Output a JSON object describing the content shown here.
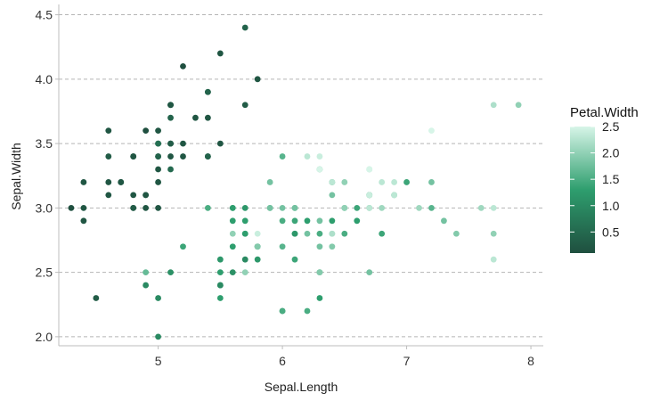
{
  "chart_data": {
    "type": "scatter",
    "xlabel": "Sepal.Length",
    "ylabel": "Sepal.Width",
    "xlim": [
      4.2,
      8.1
    ],
    "ylim": [
      1.93,
      4.58
    ],
    "xticks": [
      5,
      6,
      7,
      8
    ],
    "yticks": [
      2.0,
      2.5,
      3.0,
      3.5,
      4.0,
      4.5
    ],
    "grid": "horizontal-dashed",
    "legend": {
      "title": "Petal.Width",
      "position": "right",
      "range": [
        0.1,
        2.5
      ],
      "ticks": [
        0.5,
        1.0,
        1.5,
        2.0,
        2.5
      ],
      "color_low": "#1f4f3f",
      "color_mid": "#2e9e6e",
      "color_high": "#d7f5e8"
    },
    "points": [
      {
        "x": 5.1,
        "y": 3.5,
        "c": 0.2
      },
      {
        "x": 4.9,
        "y": 3.0,
        "c": 0.2
      },
      {
        "x": 4.7,
        "y": 3.2,
        "c": 0.2
      },
      {
        "x": 4.6,
        "y": 3.1,
        "c": 0.2
      },
      {
        "x": 5.0,
        "y": 3.6,
        "c": 0.2
      },
      {
        "x": 5.4,
        "y": 3.9,
        "c": 0.4
      },
      {
        "x": 4.6,
        "y": 3.4,
        "c": 0.3
      },
      {
        "x": 5.0,
        "y": 3.4,
        "c": 0.2
      },
      {
        "x": 4.4,
        "y": 2.9,
        "c": 0.2
      },
      {
        "x": 4.9,
        "y": 3.1,
        "c": 0.1
      },
      {
        "x": 5.4,
        "y": 3.7,
        "c": 0.2
      },
      {
        "x": 4.8,
        "y": 3.4,
        "c": 0.2
      },
      {
        "x": 4.8,
        "y": 3.0,
        "c": 0.1
      },
      {
        "x": 4.3,
        "y": 3.0,
        "c": 0.1
      },
      {
        "x": 5.8,
        "y": 4.0,
        "c": 0.2
      },
      {
        "x": 5.7,
        "y": 4.4,
        "c": 0.4
      },
      {
        "x": 5.4,
        "y": 3.9,
        "c": 0.4
      },
      {
        "x": 5.1,
        "y": 3.5,
        "c": 0.3
      },
      {
        "x": 5.7,
        "y": 3.8,
        "c": 0.3
      },
      {
        "x": 5.1,
        "y": 3.8,
        "c": 0.3
      },
      {
        "x": 5.4,
        "y": 3.4,
        "c": 0.2
      },
      {
        "x": 5.1,
        "y": 3.7,
        "c": 0.4
      },
      {
        "x": 4.6,
        "y": 3.6,
        "c": 0.2
      },
      {
        "x": 5.1,
        "y": 3.3,
        "c": 0.5
      },
      {
        "x": 4.8,
        "y": 3.4,
        "c": 0.2
      },
      {
        "x": 5.0,
        "y": 3.0,
        "c": 0.2
      },
      {
        "x": 5.0,
        "y": 3.4,
        "c": 0.4
      },
      {
        "x": 5.2,
        "y": 3.5,
        "c": 0.2
      },
      {
        "x": 5.2,
        "y": 3.4,
        "c": 0.2
      },
      {
        "x": 4.7,
        "y": 3.2,
        "c": 0.2
      },
      {
        "x": 4.8,
        "y": 3.1,
        "c": 0.2
      },
      {
        "x": 5.4,
        "y": 3.4,
        "c": 0.4
      },
      {
        "x": 5.2,
        "y": 4.1,
        "c": 0.1
      },
      {
        "x": 5.5,
        "y": 4.2,
        "c": 0.2
      },
      {
        "x": 4.9,
        "y": 3.1,
        "c": 0.2
      },
      {
        "x": 5.0,
        "y": 3.2,
        "c": 0.2
      },
      {
        "x": 5.5,
        "y": 3.5,
        "c": 0.2
      },
      {
        "x": 4.9,
        "y": 3.6,
        "c": 0.1
      },
      {
        "x": 4.4,
        "y": 3.0,
        "c": 0.2
      },
      {
        "x": 5.1,
        "y": 3.4,
        "c": 0.2
      },
      {
        "x": 5.0,
        "y": 3.5,
        "c": 0.3
      },
      {
        "x": 4.5,
        "y": 2.3,
        "c": 0.3
      },
      {
        "x": 4.4,
        "y": 3.2,
        "c": 0.2
      },
      {
        "x": 5.0,
        "y": 3.5,
        "c": 0.6
      },
      {
        "x": 5.1,
        "y": 3.8,
        "c": 0.4
      },
      {
        "x": 4.8,
        "y": 3.0,
        "c": 0.3
      },
      {
        "x": 5.1,
        "y": 3.8,
        "c": 0.2
      },
      {
        "x": 4.6,
        "y": 3.2,
        "c": 0.2
      },
      {
        "x": 5.3,
        "y": 3.7,
        "c": 0.2
      },
      {
        "x": 5.0,
        "y": 3.3,
        "c": 0.2
      },
      {
        "x": 7.0,
        "y": 3.2,
        "c": 1.4
      },
      {
        "x": 6.4,
        "y": 3.2,
        "c": 1.5
      },
      {
        "x": 6.9,
        "y": 3.1,
        "c": 1.5
      },
      {
        "x": 5.5,
        "y": 2.3,
        "c": 1.3
      },
      {
        "x": 6.5,
        "y": 2.8,
        "c": 1.5
      },
      {
        "x": 5.7,
        "y": 2.8,
        "c": 1.3
      },
      {
        "x": 6.3,
        "y": 3.3,
        "c": 1.6
      },
      {
        "x": 4.9,
        "y": 2.4,
        "c": 1.0
      },
      {
        "x": 6.6,
        "y": 2.9,
        "c": 1.3
      },
      {
        "x": 5.2,
        "y": 2.7,
        "c": 1.4
      },
      {
        "x": 5.0,
        "y": 2.0,
        "c": 1.0
      },
      {
        "x": 5.9,
        "y": 3.0,
        "c": 1.5
      },
      {
        "x": 6.0,
        "y": 2.2,
        "c": 1.0
      },
      {
        "x": 6.1,
        "y": 2.9,
        "c": 1.4
      },
      {
        "x": 5.6,
        "y": 2.9,
        "c": 1.3
      },
      {
        "x": 6.7,
        "y": 3.1,
        "c": 1.4
      },
      {
        "x": 5.6,
        "y": 3.0,
        "c": 1.5
      },
      {
        "x": 5.8,
        "y": 2.7,
        "c": 1.0
      },
      {
        "x": 6.2,
        "y": 2.2,
        "c": 1.5
      },
      {
        "x": 5.6,
        "y": 2.5,
        "c": 1.1
      },
      {
        "x": 5.9,
        "y": 3.2,
        "c": 1.8
      },
      {
        "x": 6.1,
        "y": 2.8,
        "c": 1.3
      },
      {
        "x": 6.3,
        "y": 2.5,
        "c": 1.5
      },
      {
        "x": 6.1,
        "y": 2.8,
        "c": 1.2
      },
      {
        "x": 6.4,
        "y": 2.9,
        "c": 1.3
      },
      {
        "x": 6.6,
        "y": 3.0,
        "c": 1.4
      },
      {
        "x": 6.8,
        "y": 2.8,
        "c": 1.4
      },
      {
        "x": 6.7,
        "y": 3.0,
        "c": 1.7
      },
      {
        "x": 6.0,
        "y": 2.9,
        "c": 1.5
      },
      {
        "x": 5.7,
        "y": 2.6,
        "c": 1.0
      },
      {
        "x": 5.5,
        "y": 2.4,
        "c": 1.1
      },
      {
        "x": 5.5,
        "y": 2.4,
        "c": 1.0
      },
      {
        "x": 5.8,
        "y": 2.7,
        "c": 1.2
      },
      {
        "x": 6.0,
        "y": 2.7,
        "c": 1.6
      },
      {
        "x": 5.4,
        "y": 3.0,
        "c": 1.5
      },
      {
        "x": 6.0,
        "y": 3.4,
        "c": 1.6
      },
      {
        "x": 6.7,
        "y": 3.1,
        "c": 1.5
      },
      {
        "x": 6.3,
        "y": 2.3,
        "c": 1.3
      },
      {
        "x": 5.6,
        "y": 3.0,
        "c": 1.3
      },
      {
        "x": 5.5,
        "y": 2.5,
        "c": 1.3
      },
      {
        "x": 5.5,
        "y": 2.6,
        "c": 1.2
      },
      {
        "x": 6.1,
        "y": 3.0,
        "c": 1.4
      },
      {
        "x": 5.8,
        "y": 2.6,
        "c": 1.2
      },
      {
        "x": 5.0,
        "y": 2.3,
        "c": 1.0
      },
      {
        "x": 5.6,
        "y": 2.7,
        "c": 1.3
      },
      {
        "x": 5.7,
        "y": 3.0,
        "c": 1.2
      },
      {
        "x": 5.7,
        "y": 2.9,
        "c": 1.3
      },
      {
        "x": 6.2,
        "y": 2.9,
        "c": 1.3
      },
      {
        "x": 5.1,
        "y": 2.5,
        "c": 1.1
      },
      {
        "x": 5.7,
        "y": 2.8,
        "c": 1.3
      },
      {
        "x": 6.3,
        "y": 3.3,
        "c": 2.5
      },
      {
        "x": 5.8,
        "y": 2.7,
        "c": 1.9
      },
      {
        "x": 7.1,
        "y": 3.0,
        "c": 2.1
      },
      {
        "x": 6.3,
        "y": 2.9,
        "c": 1.8
      },
      {
        "x": 6.5,
        "y": 3.0,
        "c": 2.2
      },
      {
        "x": 7.6,
        "y": 3.0,
        "c": 2.1
      },
      {
        "x": 4.9,
        "y": 2.5,
        "c": 1.7
      },
      {
        "x": 7.3,
        "y": 2.9,
        "c": 1.8
      },
      {
        "x": 6.7,
        "y": 2.5,
        "c": 1.8
      },
      {
        "x": 7.2,
        "y": 3.6,
        "c": 2.5
      },
      {
        "x": 6.5,
        "y": 3.2,
        "c": 2.0
      },
      {
        "x": 6.4,
        "y": 2.7,
        "c": 1.9
      },
      {
        "x": 6.8,
        "y": 3.0,
        "c": 2.1
      },
      {
        "x": 5.7,
        "y": 2.5,
        "c": 2.0
      },
      {
        "x": 5.8,
        "y": 2.8,
        "c": 2.4
      },
      {
        "x": 6.4,
        "y": 3.2,
        "c": 2.3
      },
      {
        "x": 6.5,
        "y": 3.0,
        "c": 1.8
      },
      {
        "x": 7.7,
        "y": 3.8,
        "c": 2.2
      },
      {
        "x": 7.7,
        "y": 2.6,
        "c": 2.3
      },
      {
        "x": 6.0,
        "y": 2.2,
        "c": 1.5
      },
      {
        "x": 6.9,
        "y": 3.2,
        "c": 2.3
      },
      {
        "x": 5.6,
        "y": 2.8,
        "c": 2.0
      },
      {
        "x": 7.7,
        "y": 2.8,
        "c": 2.0
      },
      {
        "x": 6.3,
        "y": 2.7,
        "c": 1.8
      },
      {
        "x": 6.7,
        "y": 3.3,
        "c": 2.1
      },
      {
        "x": 7.2,
        "y": 3.2,
        "c": 1.8
      },
      {
        "x": 6.2,
        "y": 2.8,
        "c": 1.8
      },
      {
        "x": 6.1,
        "y": 3.0,
        "c": 1.8
      },
      {
        "x": 6.4,
        "y": 2.8,
        "c": 2.1
      },
      {
        "x": 7.2,
        "y": 3.0,
        "c": 1.6
      },
      {
        "x": 7.4,
        "y": 2.8,
        "c": 1.9
      },
      {
        "x": 7.9,
        "y": 3.8,
        "c": 2.0
      },
      {
        "x": 6.4,
        "y": 2.8,
        "c": 2.2
      },
      {
        "x": 6.3,
        "y": 2.8,
        "c": 1.5
      },
      {
        "x": 6.1,
        "y": 2.6,
        "c": 1.4
      },
      {
        "x": 7.7,
        "y": 3.0,
        "c": 2.3
      },
      {
        "x": 6.3,
        "y": 3.4,
        "c": 2.4
      },
      {
        "x": 6.4,
        "y": 3.1,
        "c": 1.8
      },
      {
        "x": 6.0,
        "y": 3.0,
        "c": 1.8
      },
      {
        "x": 6.9,
        "y": 3.1,
        "c": 2.1
      },
      {
        "x": 6.7,
        "y": 3.1,
        "c": 2.4
      },
      {
        "x": 6.9,
        "y": 3.1,
        "c": 2.3
      },
      {
        "x": 5.8,
        "y": 2.7,
        "c": 1.9
      },
      {
        "x": 6.8,
        "y": 3.2,
        "c": 2.3
      },
      {
        "x": 6.7,
        "y": 3.3,
        "c": 2.5
      },
      {
        "x": 6.7,
        "y": 3.0,
        "c": 2.3
      },
      {
        "x": 6.3,
        "y": 2.5,
        "c": 1.9
      },
      {
        "x": 6.5,
        "y": 3.0,
        "c": 2.0
      },
      {
        "x": 6.2,
        "y": 3.4,
        "c": 2.3
      },
      {
        "x": 5.9,
        "y": 3.0,
        "c": 1.8
      }
    ]
  }
}
